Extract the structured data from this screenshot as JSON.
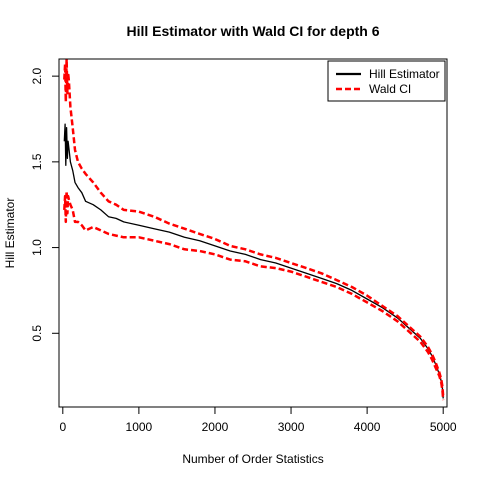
{
  "chart_data": {
    "type": "line",
    "title": "Hill Estimator with Wald CI for depth 6",
    "xlabel": "Number of Order Statistics",
    "ylabel": "Hill Estimator",
    "xlim": [
      -50,
      5050
    ],
    "ylim": [
      0.07,
      2.1
    ],
    "xticks": [
      0,
      1000,
      2000,
      3000,
      4000,
      5000
    ],
    "yticks": [
      0.5,
      1.0,
      1.5,
      2.0
    ],
    "ytick_labels": [
      "0.5",
      "1.0",
      "1.5",
      "2.0"
    ],
    "legend_position": "top-right",
    "grid": false,
    "series": [
      {
        "name": "Hill Estimator",
        "color": "#000000",
        "style": "solid",
        "x": [
          20,
          30,
          40,
          50,
          60,
          70,
          80,
          100,
          130,
          160,
          200,
          250,
          300,
          400,
          500,
          600,
          700,
          800,
          1000,
          1200,
          1400,
          1600,
          1800,
          2000,
          2200,
          2400,
          2600,
          2800,
          3000,
          3200,
          3400,
          3600,
          3800,
          4000,
          4200,
          4400,
          4600,
          4700,
          4800,
          4850,
          4900,
          4950,
          4975,
          4990,
          5000
        ],
        "y": [
          1.62,
          1.72,
          1.48,
          1.7,
          1.52,
          1.62,
          1.58,
          1.5,
          1.45,
          1.38,
          1.35,
          1.32,
          1.27,
          1.25,
          1.22,
          1.18,
          1.17,
          1.15,
          1.13,
          1.11,
          1.09,
          1.06,
          1.04,
          1.01,
          0.98,
          0.96,
          0.93,
          0.91,
          0.88,
          0.85,
          0.82,
          0.79,
          0.75,
          0.7,
          0.65,
          0.59,
          0.51,
          0.47,
          0.41,
          0.37,
          0.32,
          0.26,
          0.22,
          0.18,
          0.12
        ]
      },
      {
        "name": "Wald CI",
        "color": "#ff0000",
        "style": "dashed",
        "x": [
          20,
          30,
          40,
          50,
          60,
          70,
          80,
          100,
          130,
          160,
          200,
          250,
          300,
          400,
          500,
          600,
          700,
          800,
          1000,
          1200,
          1400,
          1600,
          1800,
          2000,
          2200,
          2400,
          2600,
          2800,
          3000,
          3200,
          3400,
          3600,
          3800,
          4000,
          4200,
          4400,
          4600,
          4700,
          4800,
          4850,
          4900,
          4950,
          4975,
          4990,
          5000
        ],
        "y": [
          1.98,
          2.07,
          1.85,
          2.1,
          1.9,
          2.02,
          1.97,
          1.82,
          1.7,
          1.57,
          1.5,
          1.46,
          1.43,
          1.38,
          1.32,
          1.27,
          1.25,
          1.22,
          1.21,
          1.18,
          1.14,
          1.11,
          1.08,
          1.05,
          1.01,
          0.99,
          0.96,
          0.94,
          0.91,
          0.88,
          0.85,
          0.81,
          0.77,
          0.72,
          0.66,
          0.6,
          0.52,
          0.48,
          0.42,
          0.38,
          0.33,
          0.27,
          0.23,
          0.19,
          0.13
        ]
      },
      {
        "name": "",
        "color": "#ff0000",
        "style": "dashed",
        "x": [
          20,
          30,
          40,
          50,
          60,
          70,
          80,
          100,
          130,
          160,
          200,
          250,
          300,
          400,
          500,
          600,
          700,
          800,
          1000,
          1200,
          1400,
          1600,
          1800,
          2000,
          2200,
          2400,
          2600,
          2800,
          3000,
          3200,
          3400,
          3600,
          3800,
          4000,
          4200,
          4400,
          4600,
          4700,
          4800,
          4850,
          4900,
          4950,
          4975,
          4990,
          5000
        ],
        "y": [
          1.22,
          1.3,
          1.15,
          1.33,
          1.2,
          1.3,
          1.28,
          1.25,
          1.22,
          1.15,
          1.15,
          1.13,
          1.1,
          1.12,
          1.1,
          1.08,
          1.07,
          1.06,
          1.06,
          1.04,
          1.02,
          0.99,
          0.98,
          0.96,
          0.93,
          0.92,
          0.89,
          0.88,
          0.86,
          0.83,
          0.8,
          0.77,
          0.73,
          0.68,
          0.63,
          0.57,
          0.49,
          0.45,
          0.39,
          0.35,
          0.3,
          0.25,
          0.21,
          0.17,
          0.11
        ]
      }
    ]
  }
}
